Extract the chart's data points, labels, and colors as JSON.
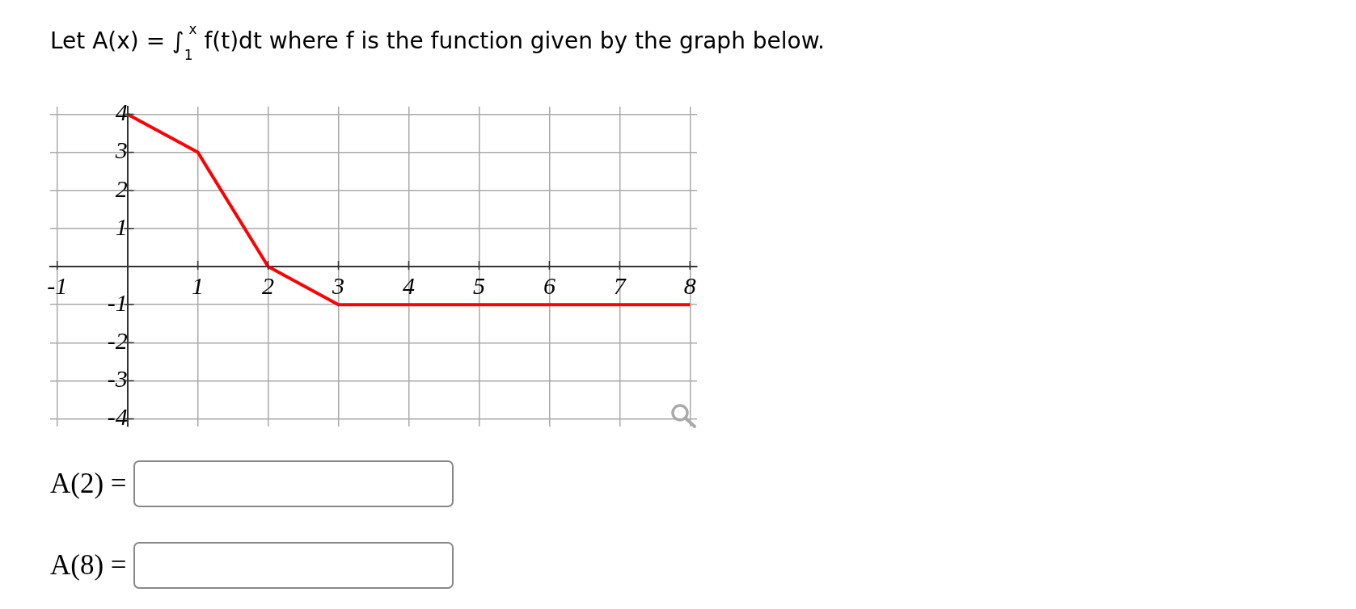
{
  "chart_data": {
    "type": "line",
    "title": "Let A(x) = ∫$_{1}$$^{x}$ f(t)dt where f is the function given by the graph below.",
    "x": [
      0,
      1,
      2,
      3,
      8
    ],
    "series": [
      {
        "color": "#ff0000",
        "values": [
          4,
          3,
          0,
          -1,
          -1
        ]
      }
    ],
    "xlim": [
      -1.1,
      8.1
    ],
    "ylim": [
      -4.2,
      4.2
    ],
    "xticks": [
      -1,
      1,
      2,
      3,
      4,
      5,
      6,
      7,
      8
    ],
    "yticks": [
      -4,
      -3,
      -2,
      -1,
      1,
      2,
      3,
      4
    ],
    "grid": true,
    "marker": "none",
    "annotations": [
      "A(2) =",
      "A(8) ="
    ]
  }
}
